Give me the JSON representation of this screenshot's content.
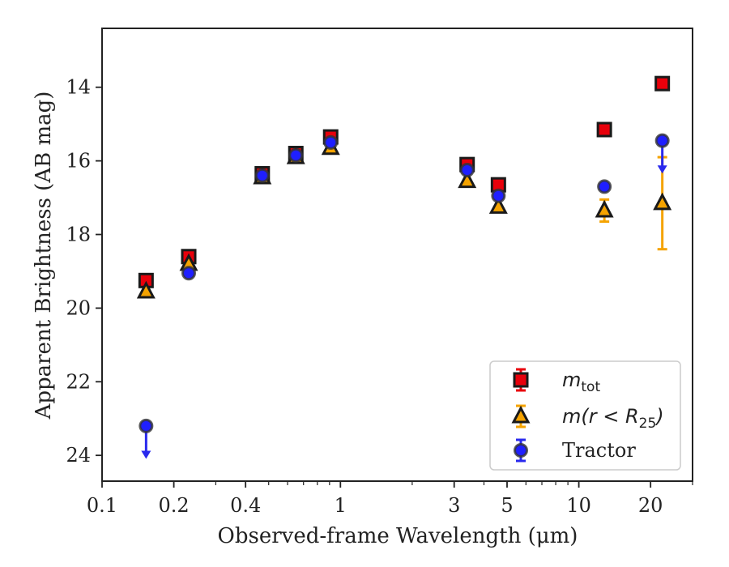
{
  "chart_data": {
    "type": "scatter",
    "xlabel": "Observed-frame Wavelength (μm)",
    "ylabel": "Apparent Brightness (AB mag)",
    "xscale": "log",
    "xlim": [
      0.1,
      30
    ],
    "ylim": [
      24.7,
      12.4
    ],
    "y_inverted": true,
    "x_ticks": [
      0.1,
      0.2,
      0.4,
      1,
      3,
      5,
      10,
      20
    ],
    "x_tick_labels": [
      "0.1",
      "0.2",
      "0.4",
      "1",
      "3",
      "5",
      "10",
      "20"
    ],
    "y_ticks": [
      14,
      16,
      18,
      20,
      22,
      24
    ],
    "y_tick_labels": [
      "14",
      "16",
      "18",
      "20",
      "22",
      "24"
    ],
    "grid": false,
    "legend_position": "bottom-right",
    "series": [
      {
        "name": "m_tot",
        "marker": "square",
        "color": "#e8000b",
        "edge": "#1a1a1a",
        "errorbar_color": "#e8000b",
        "points": [
          {
            "x": 0.153,
            "y": 19.25
          },
          {
            "x": 0.231,
            "y": 18.6
          },
          {
            "x": 0.47,
            "y": 16.35
          },
          {
            "x": 0.65,
            "y": 15.8
          },
          {
            "x": 0.91,
            "y": 15.35
          },
          {
            "x": 3.4,
            "y": 16.1
          },
          {
            "x": 4.6,
            "y": 16.65
          },
          {
            "x": 12.8,
            "y": 15.15
          },
          {
            "x": 22.4,
            "y": 13.9
          }
        ]
      },
      {
        "name": "m(r < R25)",
        "marker": "triangle",
        "color": "#f5a300",
        "edge": "#1a1a1a",
        "errorbar_color": "#f5a300",
        "points": [
          {
            "x": 0.153,
            "y": 19.55
          },
          {
            "x": 0.231,
            "y": 18.8
          },
          {
            "x": 0.47,
            "y": 16.45
          },
          {
            "x": 0.65,
            "y": 15.9
          },
          {
            "x": 0.91,
            "y": 15.65
          },
          {
            "x": 3.4,
            "y": 16.55
          },
          {
            "x": 4.6,
            "y": 17.25
          },
          {
            "x": 12.8,
            "y": 17.35,
            "err": 0.3
          },
          {
            "x": 22.4,
            "y": 17.15,
            "err_up": 1.25,
            "err_down": 1.25
          }
        ]
      },
      {
        "name": "Tractor",
        "marker": "circle",
        "color": "#1f1fff",
        "edge": "#333333",
        "errorbar_color": "#2929ee",
        "points": [
          {
            "x": 0.153,
            "y": 23.2,
            "upper_limit": true
          },
          {
            "x": 0.231,
            "y": 19.05
          },
          {
            "x": 0.47,
            "y": 16.4
          },
          {
            "x": 0.65,
            "y": 15.85
          },
          {
            "x": 0.91,
            "y": 15.5
          },
          {
            "x": 3.4,
            "y": 16.25
          },
          {
            "x": 4.6,
            "y": 16.95
          },
          {
            "x": 12.8,
            "y": 16.7
          },
          {
            "x": 22.4,
            "y": 15.45,
            "upper_limit": true
          }
        ]
      }
    ],
    "legend": {
      "entries": [
        {
          "label_main": "m",
          "label_sub": "tot"
        },
        {
          "label_main": "m(r < R",
          "label_sub": "25",
          "label_tail": ")"
        },
        {
          "label_main": "Tractor"
        }
      ]
    }
  }
}
